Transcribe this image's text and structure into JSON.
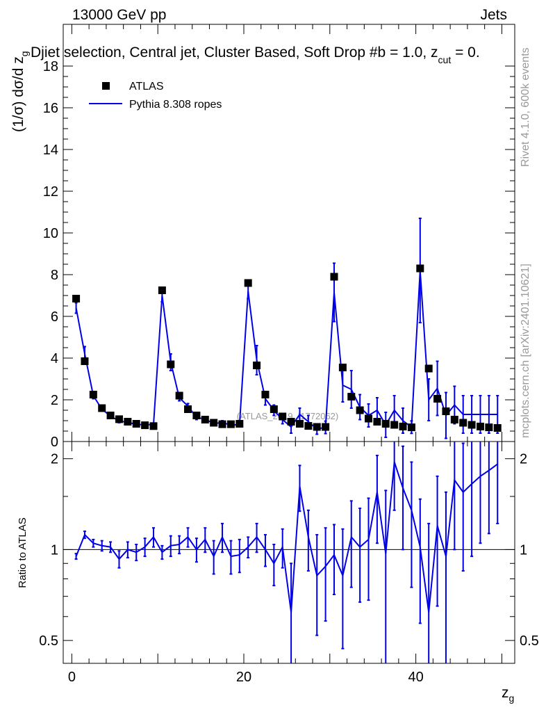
{
  "header": {
    "energy": "13000 GeV pp",
    "category": "Jets",
    "selection": "Djiet selection, Central jet, Cluster Based, Soft Drop #b = 1.0, z",
    "selection_sub": "cut",
    "selection_tail": " = 0.",
    "watermark": "(ATLAS_2019_I1772062)"
  },
  "side_labels": {
    "rivet": "Rivet 4.1.0,  600k events",
    "mcplots": "mcplots.cern.ch [arXiv:2401.10621]"
  },
  "colors": {
    "mc": "#0000e6",
    "data": "#000000",
    "watermark": "#999999"
  },
  "chart_data": [
    {
      "name": "main",
      "type": "scatter",
      "ylabel": "(1/σ) dσ/d z_g",
      "ylabel_main": "(1/σ) dσ/d z",
      "ylabel_sub": "g",
      "ylim": [
        0,
        20
      ],
      "yticks": [
        0,
        2,
        4,
        6,
        8,
        10,
        12,
        14,
        16,
        18
      ],
      "ytick_labels": [
        "0",
        "2",
        "4",
        "6",
        "8",
        "10",
        "12",
        "14",
        "16",
        "18"
      ],
      "legend": [
        {
          "label": "ATLAS",
          "style": "marker"
        },
        {
          "label": "Pythia 8.308 ropes",
          "style": "line"
        }
      ],
      "data": {
        "name": "ATLAS",
        "x": [
          0.5,
          1.5,
          2.5,
          3.5,
          4.5,
          5.5,
          6.5,
          7.5,
          8.5,
          9.5,
          10.5,
          11.5,
          12.5,
          13.5,
          14.5,
          15.5,
          16.5,
          17.5,
          18.5,
          19.5,
          20.5,
          21.5,
          22.5,
          23.5,
          24.5,
          25.5,
          26.5,
          27.5,
          28.5,
          29.5,
          30.5,
          31.5,
          32.5,
          33.5,
          34.5,
          35.5,
          36.5,
          37.5,
          38.5,
          39.5,
          40.5,
          41.5,
          42.5,
          43.5,
          44.5,
          45.5,
          46.5,
          47.5,
          48.5,
          49.5
        ],
        "y": [
          6.85,
          3.85,
          2.25,
          1.6,
          1.25,
          1.07,
          0.95,
          0.85,
          0.78,
          0.74,
          7.25,
          3.7,
          2.2,
          1.55,
          1.25,
          1.05,
          0.9,
          0.83,
          0.83,
          0.85,
          7.6,
          3.65,
          2.25,
          1.55,
          1.2,
          0.95,
          0.85,
          0.75,
          0.7,
          0.7,
          7.9,
          3.55,
          2.15,
          1.5,
          1.1,
          0.95,
          0.85,
          0.8,
          0.72,
          0.68,
          8.3,
          3.5,
          2.05,
          1.45,
          1.05,
          0.9,
          0.8,
          0.72,
          0.68,
          0.65
        ]
      },
      "mc": {
        "name": "Pythia 8.308 ropes",
        "x": [
          0.5,
          1.5,
          2.5,
          3.5,
          4.5,
          5.5,
          6.5,
          7.5,
          8.5,
          9.5,
          10.5,
          11.5,
          12.5,
          13.5,
          14.5,
          15.5,
          16.5,
          17.5,
          18.5,
          19.5,
          20.5,
          21.5,
          22.5,
          23.5,
          24.5,
          25.5,
          26.5,
          27.5,
          28.5,
          29.5,
          30.5,
          31.5,
          32.5,
          33.5,
          34.5,
          35.5,
          36.5,
          37.5,
          38.5,
          39.5,
          40.5,
          41.5,
          42.5,
          43.5,
          44.5,
          45.5,
          46.5,
          47.5,
          48.5,
          49.5
        ],
        "y": [
          6.4,
          4.2,
          2.2,
          1.55,
          1.22,
          0.98,
          0.92,
          0.82,
          0.8,
          0.82,
          7.0,
          3.8,
          2.1,
          1.7,
          1.15,
          1.08,
          0.85,
          0.92,
          0.78,
          0.82,
          7.2,
          3.9,
          2.05,
          1.5,
          1.05,
          0.7,
          1.3,
          0.95,
          0.6,
          0.68,
          7.15,
          2.7,
          2.5,
          1.65,
          1.25,
          1.5,
          0.8,
          1.5,
          1.0,
          0.69,
          8.2,
          2.0,
          2.55,
          1.25,
          1.75,
          1.3,
          1.3,
          1.3,
          1.3,
          1.3
        ],
        "yerr": [
          0.25,
          0.35,
          0.15,
          0.1,
          0.08,
          0.08,
          0.06,
          0.06,
          0.06,
          0.06,
          0.3,
          0.4,
          0.15,
          0.12,
          0.1,
          0.1,
          0.08,
          0.08,
          0.08,
          0.08,
          0.35,
          0.7,
          0.3,
          0.25,
          0.2,
          0.3,
          0.3,
          0.3,
          0.25,
          0.3,
          1.4,
          0.8,
          0.9,
          0.6,
          0.55,
          0.6,
          0.6,
          0.7,
          0.6,
          0.3,
          2.5,
          1.0,
          1.3,
          1.1,
          0.9,
          0.9,
          0.9,
          0.9,
          0.9,
          0.9
        ]
      }
    },
    {
      "name": "ratio",
      "type": "line",
      "xlabel": "z_g",
      "xlabel_main": "z",
      "xlabel_sub": "g",
      "ylabel": "Ratio to ATLAS",
      "ylim": [
        0.42,
        2.28
      ],
      "yticks": [
        0.5,
        1,
        2
      ],
      "ytick_labels": [
        "0.5",
        "1",
        "2"
      ],
      "xlim": [
        -1,
        51.5
      ],
      "xticks": [
        0,
        20,
        40
      ],
      "xtick_labels": [
        "0",
        "20",
        "40"
      ],
      "x": [
        0.5,
        1.5,
        2.5,
        3.5,
        4.5,
        5.5,
        6.5,
        7.5,
        8.5,
        9.5,
        10.5,
        11.5,
        12.5,
        13.5,
        14.5,
        15.5,
        16.5,
        17.5,
        18.5,
        19.5,
        20.5,
        21.5,
        22.5,
        23.5,
        24.5,
        25.5,
        26.5,
        27.5,
        28.5,
        29.5,
        30.5,
        31.5,
        32.5,
        33.5,
        34.5,
        35.5,
        36.5,
        37.5,
        38.5,
        39.5,
        40.5,
        41.5,
        42.5,
        43.5,
        44.5,
        45.5,
        46.5,
        47.5,
        48.5,
        49.5
      ],
      "values": [
        0.95,
        1.12,
        1.05,
        1.03,
        1.02,
        0.93,
        1.0,
        0.98,
        1.02,
        1.1,
        0.98,
        1.03,
        1.04,
        1.1,
        1.0,
        1.08,
        0.95,
        1.1,
        0.95,
        0.96,
        1.02,
        1.1,
        1.0,
        0.9,
        1.02,
        0.62,
        1.62,
        1.1,
        0.82,
        0.88,
        0.96,
        0.82,
        1.1,
        1.02,
        1.08,
        1.55,
        0.97,
        1.95,
        1.6,
        1.35,
        1.02,
        0.62,
        1.2,
        0.95,
        1.7,
        1.55,
        1.65,
        1.75,
        1.83,
        1.92
      ],
      "errors": [
        0.02,
        0.03,
        0.03,
        0.04,
        0.04,
        0.06,
        0.06,
        0.06,
        0.07,
        0.08,
        0.05,
        0.08,
        0.07,
        0.08,
        0.09,
        0.1,
        0.12,
        0.12,
        0.12,
        0.12,
        0.08,
        0.12,
        0.12,
        0.14,
        0.15,
        0.28,
        0.28,
        0.25,
        0.3,
        0.3,
        0.25,
        0.35,
        0.35,
        0.35,
        0.4,
        0.5,
        0.6,
        0.6,
        0.6,
        0.6,
        0.45,
        0.6,
        0.55,
        0.6,
        0.7,
        0.7,
        0.7,
        0.7,
        0.7,
        0.7
      ]
    }
  ]
}
